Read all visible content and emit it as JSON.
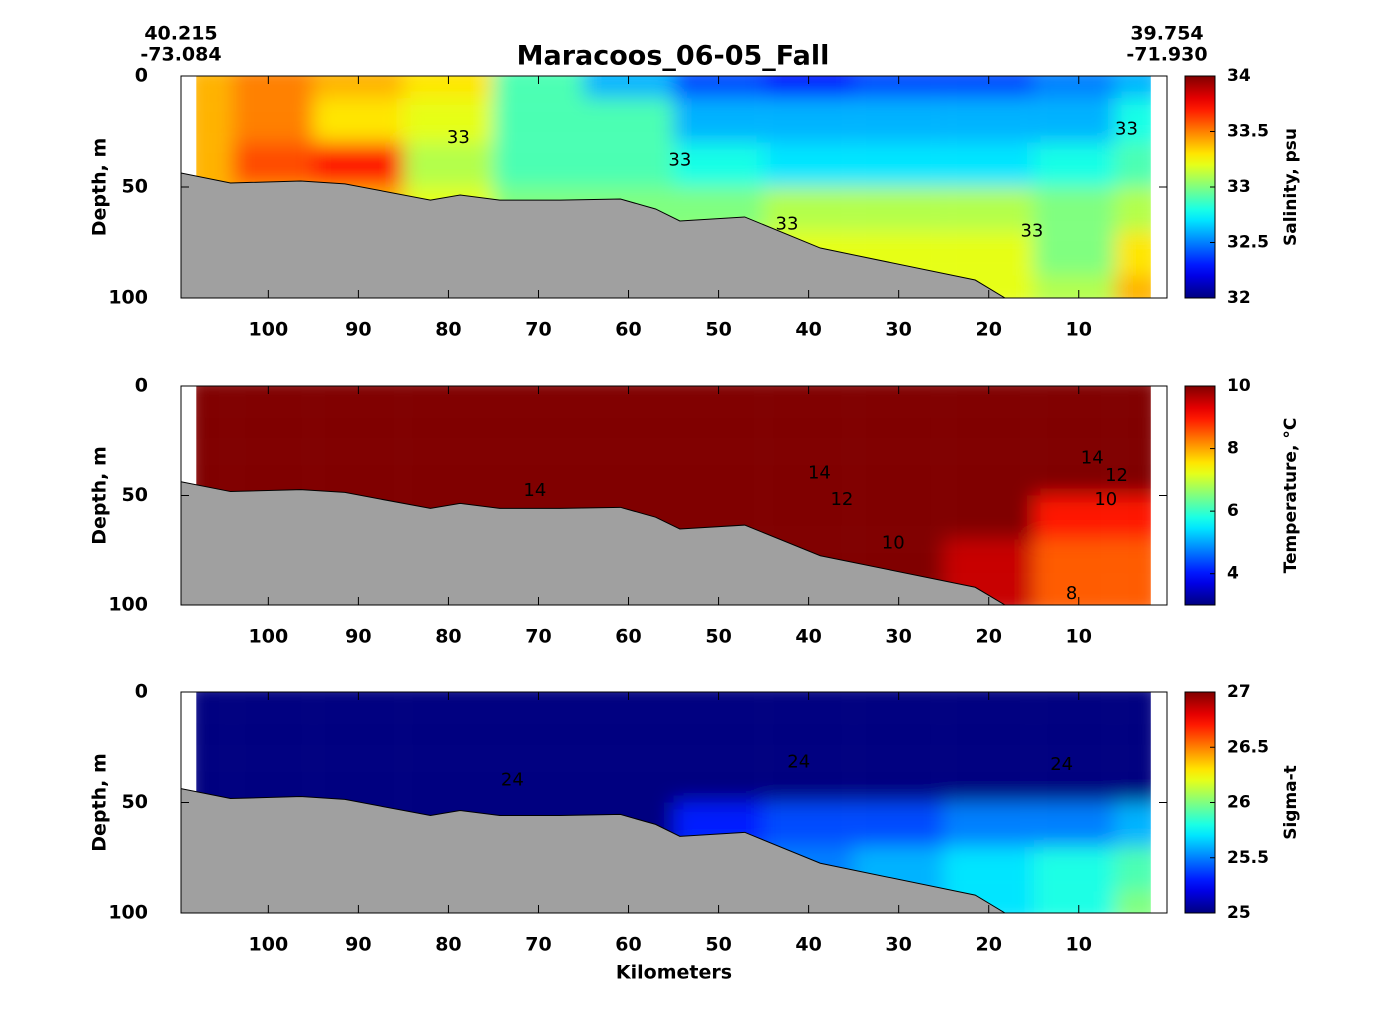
{
  "title": "Maracoos_06-05_Fall",
  "start_coords": [
    "40.215",
    "-73.084"
  ],
  "end_coords": [
    "39.754",
    "-71.930"
  ],
  "chart_data": [
    {
      "type": "contour",
      "ylabel": "Depth, m",
      "colorbar_label": "Salinity, psu",
      "colormap": "jet",
      "xlim": [
        109.7,
        0.2
      ],
      "xticks": [
        100,
        90,
        80,
        70,
        60,
        50,
        40,
        30,
        20,
        10
      ],
      "ylim": [
        0,
        100
      ],
      "yticks": [
        0,
        50,
        100
      ],
      "clim": [
        32,
        34
      ],
      "cticks": [
        32,
        32.5,
        33,
        33.5,
        34
      ],
      "x": [
        108,
        100,
        90,
        80,
        70,
        60,
        50,
        40,
        30,
        20,
        10,
        2
      ],
      "depth": [
        0,
        20,
        40,
        60,
        80,
        100
      ],
      "values": [
        [
          33.4,
          33.5,
          33.4,
          33.3,
          32.9,
          32.6,
          32.4,
          32.3,
          32.4,
          32.4,
          32.5,
          32.6
        ],
        [
          33.4,
          33.5,
          33.3,
          33.2,
          32.9,
          32.9,
          32.6,
          32.6,
          32.6,
          32.6,
          32.6,
          32.8
        ],
        [
          33.4,
          33.6,
          33.7,
          33.1,
          32.9,
          32.9,
          32.8,
          32.7,
          32.7,
          32.7,
          32.8,
          32.9
        ],
        [
          33.4,
          33.4,
          33.4,
          33.2,
          33.0,
          33.0,
          33.0,
          33.1,
          33.1,
          33.1,
          33.0,
          33.1
        ],
        [
          33.4,
          33.4,
          33.4,
          33.2,
          33.0,
          33.0,
          33.1,
          33.2,
          33.2,
          33.2,
          33.0,
          33.3
        ],
        [
          33.4,
          33.4,
          33.4,
          33.2,
          33.0,
          33.0,
          33.1,
          33.2,
          33.2,
          33.2,
          33.1,
          33.4
        ]
      ],
      "bottom_x": [
        109.7,
        104.2,
        96.4,
        91.5,
        82.0,
        78.7,
        74.3,
        67.6,
        60.9,
        57.0,
        54.3,
        47.1,
        38.7,
        21.5,
        18.2
      ],
      "bottom_depth": [
        43.7,
        48.2,
        47.3,
        48.6,
        55.9,
        53.6,
        55.9,
        55.9,
        55.4,
        59.9,
        65.3,
        63.5,
        77.5,
        91.9,
        100
      ],
      "annotations": [
        {
          "text": "33",
          "x": 78.9,
          "y": 28
        },
        {
          "text": "33",
          "x": 54.3,
          "y": 38
        },
        {
          "text": "33",
          "x": 42.4,
          "y": 67
        },
        {
          "text": "33",
          "x": 15.2,
          "y": 70
        },
        {
          "text": "33",
          "x": 4.7,
          "y": 24
        }
      ]
    },
    {
      "type": "contour",
      "ylabel": "Depth, m",
      "colorbar_label": "Temperature, °C",
      "colormap": "jet",
      "xlim": [
        109.7,
        0.2
      ],
      "xticks": [
        100,
        90,
        80,
        70,
        60,
        50,
        40,
        30,
        20,
        10
      ],
      "ylim": [
        0,
        100
      ],
      "yticks": [
        0,
        50,
        100
      ],
      "clim": [
        3,
        10
      ],
      "cticks": [
        4,
        6,
        8,
        10
      ],
      "x": [
        108,
        100,
        90,
        80,
        70,
        60,
        50,
        40,
        30,
        20,
        10,
        2
      ],
      "depth": [
        0,
        20,
        40,
        60,
        80,
        100
      ],
      "values": [
        [
          18,
          18,
          18,
          18,
          18,
          18,
          18,
          18,
          18,
          18,
          18,
          18
        ],
        [
          17,
          17,
          17,
          17,
          17,
          17,
          17,
          17,
          17,
          17,
          17,
          17
        ],
        [
          15,
          15,
          15,
          15,
          15,
          15,
          14,
          14,
          13,
          13,
          13,
          12
        ],
        [
          14,
          14,
          14,
          13,
          13,
          13,
          12,
          11,
          10,
          10,
          9,
          9
        ],
        [
          14,
          14,
          14,
          13,
          13,
          13,
          12,
          11,
          10,
          9.5,
          8.5,
          8.5
        ],
        [
          14,
          14,
          14,
          13,
          13,
          13,
          12,
          11,
          10,
          9.5,
          8.5,
          8.5
        ]
      ],
      "bottom_x": [
        109.7,
        104.2,
        96.4,
        91.5,
        82.0,
        78.7,
        74.3,
        67.6,
        60.9,
        57.0,
        54.3,
        47.1,
        38.7,
        21.5,
        18.2
      ],
      "bottom_depth": [
        43.7,
        48.2,
        47.3,
        48.6,
        55.9,
        53.6,
        55.9,
        55.9,
        55.4,
        59.9,
        65.3,
        63.5,
        77.5,
        91.9,
        100
      ],
      "annotations": [
        {
          "text": "14",
          "x": 70.4,
          "y": 48
        },
        {
          "text": "14",
          "x": 38.8,
          "y": 40
        },
        {
          "text": "12",
          "x": 36.3,
          "y": 52
        },
        {
          "text": "10",
          "x": 30.6,
          "y": 72
        },
        {
          "text": "14",
          "x": 8.5,
          "y": 33
        },
        {
          "text": "12",
          "x": 5.8,
          "y": 41
        },
        {
          "text": "10",
          "x": 7.0,
          "y": 52
        },
        {
          "text": "8",
          "x": 10.8,
          "y": 95
        }
      ]
    },
    {
      "type": "contour",
      "ylabel": "Depth, m",
      "xlabel": "Kilometers",
      "colorbar_label": "Sigma-t",
      "colormap": "jet",
      "xlim": [
        109.7,
        0.2
      ],
      "xticks": [
        100,
        90,
        80,
        70,
        60,
        50,
        40,
        30,
        20,
        10
      ],
      "ylim": [
        0,
        100
      ],
      "yticks": [
        0,
        50,
        100
      ],
      "clim": [
        25,
        27
      ],
      "cticks": [
        25,
        25.5,
        26,
        26.5,
        27
      ],
      "x": [
        108,
        100,
        90,
        80,
        70,
        60,
        50,
        40,
        30,
        20,
        10,
        2
      ],
      "depth": [
        0,
        20,
        40,
        60,
        80,
        100
      ],
      "values": [
        [
          23.5,
          23.5,
          23.5,
          23.5,
          23.5,
          23.5,
          23.5,
          23.5,
          23.5,
          23.5,
          23.5,
          23.5
        ],
        [
          23.8,
          23.8,
          23.8,
          23.8,
          23.8,
          23.8,
          23.8,
          23.8,
          23.8,
          23.8,
          23.8,
          23.8
        ],
        [
          24.2,
          24.2,
          24.2,
          24.1,
          24.1,
          24.1,
          24.1,
          24.1,
          24.2,
          24.3,
          24.4,
          24.6
        ],
        [
          24.3,
          24.3,
          24.3,
          24.3,
          24.4,
          24.6,
          25.3,
          25.4,
          25.4,
          25.5,
          25.5,
          25.6
        ],
        [
          24.3,
          24.3,
          24.3,
          24.3,
          24.4,
          24.6,
          25.4,
          25.5,
          25.6,
          25.7,
          25.8,
          25.9
        ],
        [
          24.3,
          24.3,
          24.3,
          24.3,
          24.4,
          24.6,
          25.4,
          25.5,
          25.6,
          25.7,
          25.8,
          26.0
        ]
      ],
      "bottom_x": [
        109.7,
        104.2,
        96.4,
        91.5,
        82.0,
        78.7,
        74.3,
        67.6,
        60.9,
        57.0,
        54.3,
        47.1,
        38.7,
        21.5,
        18.2
      ],
      "bottom_depth": [
        43.7,
        48.2,
        47.3,
        48.6,
        55.9,
        53.6,
        55.9,
        55.9,
        55.4,
        59.9,
        65.3,
        63.5,
        77.5,
        91.9,
        100
      ],
      "annotations": [
        {
          "text": "24",
          "x": 72.9,
          "y": 40
        },
        {
          "text": "24",
          "x": 41.1,
          "y": 32
        },
        {
          "text": "24",
          "x": 11.9,
          "y": 33
        }
      ]
    }
  ]
}
